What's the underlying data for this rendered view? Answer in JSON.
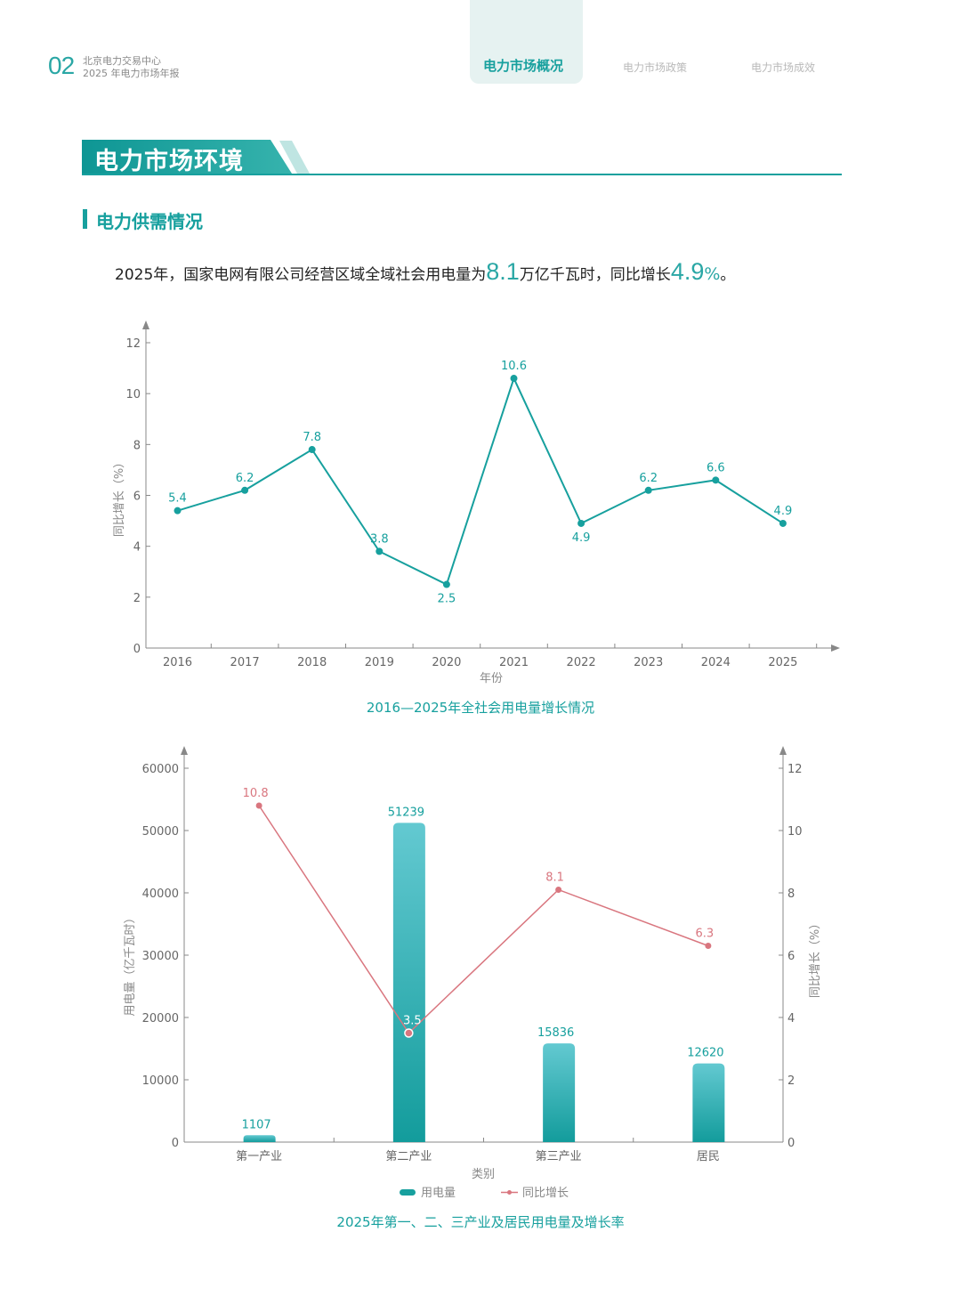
{
  "header": {
    "page_number": "02",
    "org_line1": "北京电力交易中心",
    "org_line2": "2025 年电力市场年报",
    "tabs": [
      {
        "label": "电力市场概况",
        "active": true
      },
      {
        "label": "电力市场政策",
        "active": false
      },
      {
        "label": "电力市场成效",
        "active": false
      }
    ]
  },
  "section": {
    "title": "电力市场环境"
  },
  "subsection": {
    "title": "电力供需情况"
  },
  "intro": {
    "prefix": "2025年，国家电网有限公司经营区域全域社会用电量为",
    "value1": "8.1",
    "mid": "万亿千瓦时，同比增长",
    "value2": "4.9",
    "unit2": "%",
    "suffix": "。"
  },
  "colors": {
    "teal": "#17a09e",
    "teal_light": "#5fc6cf",
    "pink": "#d9767f",
    "axis": "#888888"
  },
  "chart_data": [
    {
      "type": "line",
      "x": [
        "2016",
        "2017",
        "2018",
        "2019",
        "2020",
        "2021",
        "2022",
        "2023",
        "2024",
        "2025"
      ],
      "series": [
        {
          "values": [
            5.4,
            6.2,
            7.8,
            3.8,
            2.5,
            10.6,
            4.9,
            6.2,
            6.6,
            4.9
          ]
        }
      ],
      "data_labels": [
        "5.4",
        "6.2",
        "7.8",
        "3.8",
        "2.5",
        "10.6",
        "4.9",
        "6.2",
        "6.6",
        "4.9"
      ],
      "ylim": [
        0,
        12
      ],
      "yticks": [
        "0",
        "2",
        "4",
        "6",
        "8",
        "10",
        "12"
      ],
      "xlabel": "年份",
      "ylabel": "同比增长（%）",
      "caption": "2016—2025年全社会用电量增长情况",
      "grid": false
    },
    {
      "type": "bar",
      "categories": [
        "第一产业",
        "第二产业",
        "第三产业",
        "居民"
      ],
      "series": [
        {
          "name": "用电量",
          "type": "bar",
          "axis": "left",
          "values": [
            1107,
            51239,
            15836,
            12620
          ],
          "labels": [
            "1107",
            "51239",
            "15836",
            "12620"
          ]
        },
        {
          "name": "同比增长",
          "type": "line",
          "axis": "right",
          "values": [
            10.8,
            3.5,
            8.1,
            6.3
          ],
          "labels": [
            "10.8",
            "3.5",
            "8.1",
            "6.3"
          ]
        }
      ],
      "ylim_left": [
        0,
        60000
      ],
      "yticks_left": [
        "0",
        "10000",
        "20000",
        "30000",
        "40000",
        "50000",
        "60000"
      ],
      "ylim_right": [
        0,
        12
      ],
      "yticks_right": [
        "0",
        "2",
        "4",
        "6",
        "8",
        "10",
        "12"
      ],
      "xlabel": "类别",
      "ylabel_left": "用电量（亿千瓦时）",
      "ylabel_right": "同比增长（%）",
      "legend": "bottom",
      "caption": "2025年第一、二、三产业及居民用电量及增长率",
      "grid": false
    }
  ]
}
